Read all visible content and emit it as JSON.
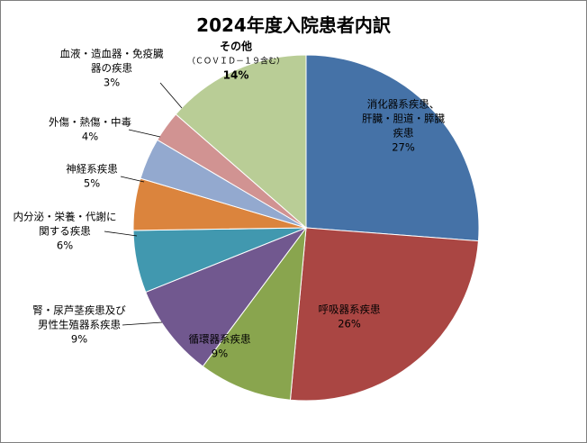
{
  "chart_data": {
    "type": "pie",
    "title": "2024年度入院患者内訳",
    "start_angle_deg": 0,
    "direction": "clockwise",
    "slices": [
      {
        "name": "消化器系疾患、肝臓・胆道・膵臓疾患",
        "lines": [
          "消化器系疾患、",
          "肝臓・胆道・膵臓",
          "疾患"
        ],
        "value": 27,
        "label": "27%",
        "color": "#4572A7"
      },
      {
        "name": "呼吸器系疾患",
        "lines": [
          "呼吸器系疾患"
        ],
        "value": 26,
        "label": "26%",
        "color": "#AA4643"
      },
      {
        "name": "循環器系疾患",
        "lines": [
          "循環器系疾患"
        ],
        "value": 9,
        "label": "9%",
        "color": "#89A54E"
      },
      {
        "name": "腎・尿芦茎疾患及び男性生殖器系疾患",
        "lines": [
          "腎・尿芦茎疾患及び",
          "男性生殖器系疾患"
        ],
        "value": 9,
        "label": "9%",
        "color": "#71588F"
      },
      {
        "name": "内分泌・栄養・代謝に関する疾患",
        "lines": [
          "内分泌・栄養・代謝に",
          "関する疾患"
        ],
        "value": 6,
        "label": "6%",
        "color": "#4198AF"
      },
      {
        "name": "神経系疾患",
        "lines": [
          "神経系疾患"
        ],
        "value": 5,
        "label": "5%",
        "color": "#DB843D"
      },
      {
        "name": "外傷・熱傷・中毒",
        "lines": [
          "外傷・熱傷・中毒"
        ],
        "value": 4,
        "label": "4%",
        "color": "#93A9CF"
      },
      {
        "name": "血液・造血器・免疫臓器の疾患",
        "lines": [
          "血液・造血器・免疫臓",
          "器の疾患"
        ],
        "value": 3,
        "label": "3%",
        "color": "#D19392"
      },
      {
        "name": "その他（ＣＯＶＩＤ－１９含む）",
        "lines": [
          "その他",
          "（ＣＯＶＩＤ－１９含む）"
        ],
        "value": 14,
        "label": "14%",
        "color": "#B9CD96"
      }
    ]
  }
}
